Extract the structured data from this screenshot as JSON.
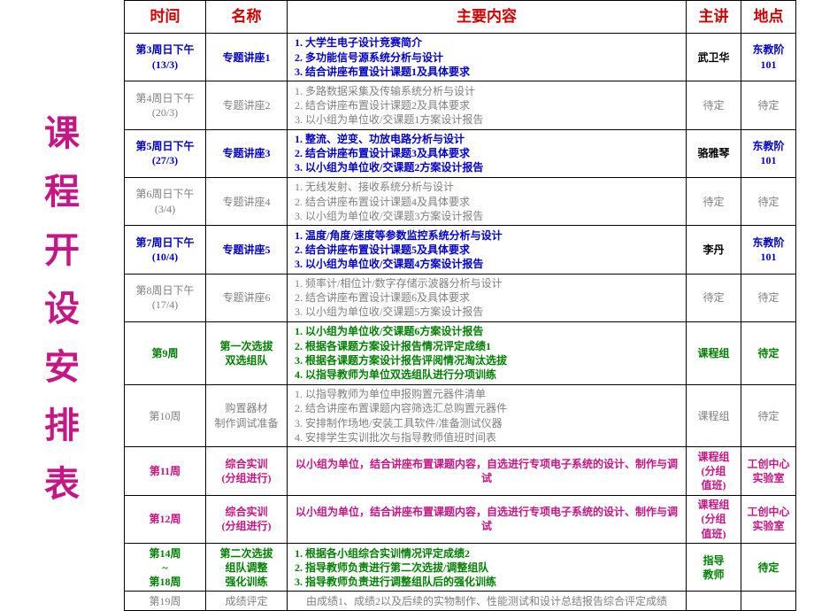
{
  "page_title_chars": [
    "课",
    "程",
    "开",
    "设",
    "安",
    "排",
    "表"
  ],
  "colors": {
    "page_title": "#c71585",
    "header": "#d00000",
    "blue": "#0000cd",
    "gray": "#808080",
    "green": "#008000",
    "magenta": "#c71585",
    "black": "#000000",
    "border": "#000000",
    "background": "#ffffff"
  },
  "headers": [
    "时间",
    "名称",
    "主要内容",
    "主讲",
    "地点"
  ],
  "rows": [
    {
      "time": "第3周日下午\n(13/3)",
      "name": "专题讲座1",
      "color": "blue",
      "content_type": "list",
      "items": [
        "大学生电子设计竞赛简介",
        "多功能信号源系统分析与设计",
        "结合讲座布置设计课题1及具体要求"
      ],
      "lecturer": "武卫华",
      "lecturer_color": "black",
      "location": "东教阶\n101",
      "location_color": "blue"
    },
    {
      "time": "第4周日下午\n(20/3)",
      "name": "专题讲座2",
      "color": "gray",
      "content_type": "list",
      "items": [
        "多路数据采集及传输系统分析与设计",
        "结合讲座布置设计课题2及具体要求",
        "以小组为单位收/交课题1方案设计报告"
      ],
      "lecturer": "待定",
      "lecturer_color": "gray",
      "location": "待定",
      "location_color": "gray"
    },
    {
      "time": "第5周日下午\n(27/3)",
      "name": "专题讲座3",
      "color": "blue",
      "content_type": "list",
      "items": [
        "整流、逆变、功放电路分析与设计",
        "结合讲座布置设计课题3及具体要求",
        "以小组为单位收/交课题2方案设计报告"
      ],
      "lecturer": "骆雅琴",
      "lecturer_color": "black",
      "location": "东教阶\n101",
      "location_color": "blue"
    },
    {
      "time": "第6周日下午\n(3/4)",
      "name": "专题讲座4",
      "color": "gray",
      "content_type": "list",
      "items": [
        "无线发射、接收系统分析与设计",
        "结合讲座布置设计课题4及具体要求",
        "以小组为单位收/交课题3方案设计报告"
      ],
      "lecturer": "待定",
      "lecturer_color": "gray",
      "location": "待定",
      "location_color": "gray"
    },
    {
      "time": "第7周日下午\n(10/4)",
      "name": "专题讲座5",
      "color": "blue",
      "content_type": "list",
      "items": [
        "温度/角度/速度等参数监控系统分析与设计",
        "结合讲座布置设计课题5及具体要求",
        "以小组为单位收/交课题4方案设计报告"
      ],
      "lecturer": "李丹",
      "lecturer_color": "black",
      "location": "东教阶\n101",
      "location_color": "blue"
    },
    {
      "time": "第8周日下午\n(17/4)",
      "name": "专题讲座6",
      "color": "gray",
      "content_type": "list",
      "items": [
        "频率计/相位计/数字存储示波器分析与设计",
        "结合讲座布置设计课题6及具体要求",
        "以小组为单位收/交课题5方案设计报告"
      ],
      "lecturer": "待定",
      "lecturer_color": "gray",
      "location": "待定",
      "location_color": "gray"
    },
    {
      "time": "第9周",
      "name": "第一次选拔\n双选组队",
      "color": "green",
      "content_type": "list",
      "items": [
        "以小组为单位收/交课题6方案设计报告",
        "根据各课题方案设计报告情况评定成绩1",
        "根据各课题方案设计报告评阅情况淘汰选拔",
        "以指导教师为单位双选组队进行分项训练"
      ],
      "lecturer": "课程组",
      "lecturer_color": "green",
      "location": "待定",
      "location_color": "green"
    },
    {
      "time": "第10周",
      "name": "购置器材\n制作调试准备",
      "color": "gray",
      "content_type": "list",
      "items": [
        "以指导教师为单位申报购置元器件清单",
        "结合讲座布置课题内容筛选汇总购置元器件",
        "安排制作场地/安装工具软件/准备测试仪器",
        "安排学生实训批次与指导教师值班时间表"
      ],
      "lecturer": "课程组",
      "lecturer_color": "gray",
      "location": "待定",
      "location_color": "gray"
    },
    {
      "time": "第11周",
      "name": "综合实训\n(分组进行)",
      "color": "magenta",
      "content_type": "text",
      "text": "以小组为单位，结合讲座布置课题内容，自选进行专项电子系统的设计、制作与调试",
      "lecturer": "课程组\n(分组\n值班)",
      "lecturer_color": "magenta",
      "location": "工创中心\n实验室",
      "location_color": "magenta"
    },
    {
      "time": "第12周",
      "name": "综合实训\n(分组进行)",
      "color": "magenta",
      "content_type": "text",
      "text": "以小组为单位，结合讲座布置课题内容，自选进行专项电子系统的设计、制作与调试",
      "lecturer": "课程组\n(分组\n值班)",
      "lecturer_color": "magenta",
      "location": "工创中心\n实验室",
      "location_color": "magenta"
    },
    {
      "time": "第14周\n~\n第18周",
      "name": "第二次选拔\n组队调整\n强化训练",
      "color": "green",
      "content_type": "list",
      "items": [
        "根据各小组综合实训情况评定成绩2",
        "指导教师负责进行第二次选拔/调整组队",
        "指导教师负责进行调整组队后的强化训练"
      ],
      "lecturer": "指导\n教师",
      "lecturer_color": "green",
      "location": "待定",
      "location_color": "green"
    },
    {
      "time": "第19周",
      "name": "成绩评定",
      "color": "gray",
      "content_type": "text",
      "text": "由成绩1、成绩2以及后续的实物制作、性能测试和设计总结报告综合评定成绩",
      "lecturer": "",
      "lecturer_color": "gray",
      "location": "",
      "location_color": "gray"
    }
  ]
}
